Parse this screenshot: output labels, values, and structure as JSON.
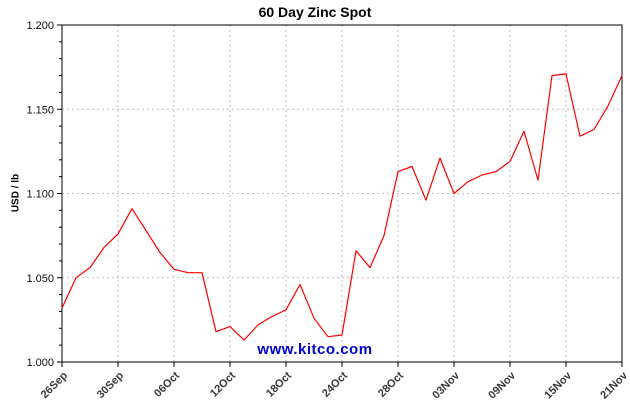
{
  "chart_data": {
    "type": "line",
    "title": "60 Day Zinc Spot",
    "ylabel": "USD / lb",
    "watermark": "www.kitco.com",
    "ylim": [
      1.0,
      1.2
    ],
    "y_ticks": [
      "1.000",
      "1.050",
      "1.100",
      "1.150",
      "1.200"
    ],
    "y_minor_step": 0.01,
    "x_tick_labels": [
      "26Sep",
      "30Sep",
      "06Oct",
      "12Oct",
      "18Oct",
      "24Oct",
      "28Oct",
      "03Nov",
      "09Nov",
      "15Nov",
      "21Nov"
    ],
    "x_tick_indices": [
      0,
      4,
      8,
      12,
      16,
      20,
      24,
      28,
      32,
      36,
      40
    ],
    "grid": true,
    "legend": "none",
    "series": [
      {
        "name": "Zinc Spot",
        "color": "#ff0000",
        "values": [
          1.032,
          1.05,
          1.056,
          1.068,
          1.076,
          1.091,
          1.078,
          1.065,
          1.055,
          1.053,
          1.053,
          1.018,
          1.021,
          1.013,
          1.022,
          1.027,
          1.031,
          1.046,
          1.026,
          1.015,
          1.016,
          1.066,
          1.056,
          1.075,
          1.113,
          1.116,
          1.096,
          1.121,
          1.1,
          1.107,
          1.111,
          1.113,
          1.119,
          1.137,
          1.108,
          1.17,
          1.171,
          1.134,
          1.138,
          1.152,
          1.17
        ]
      }
    ],
    "colors": {
      "line": "#ff0000",
      "grid": "#bdbdbd",
      "border": "#000000",
      "watermark": "#0000cc",
      "x_label": "#3a3a3a",
      "y_label": "#111111"
    }
  }
}
